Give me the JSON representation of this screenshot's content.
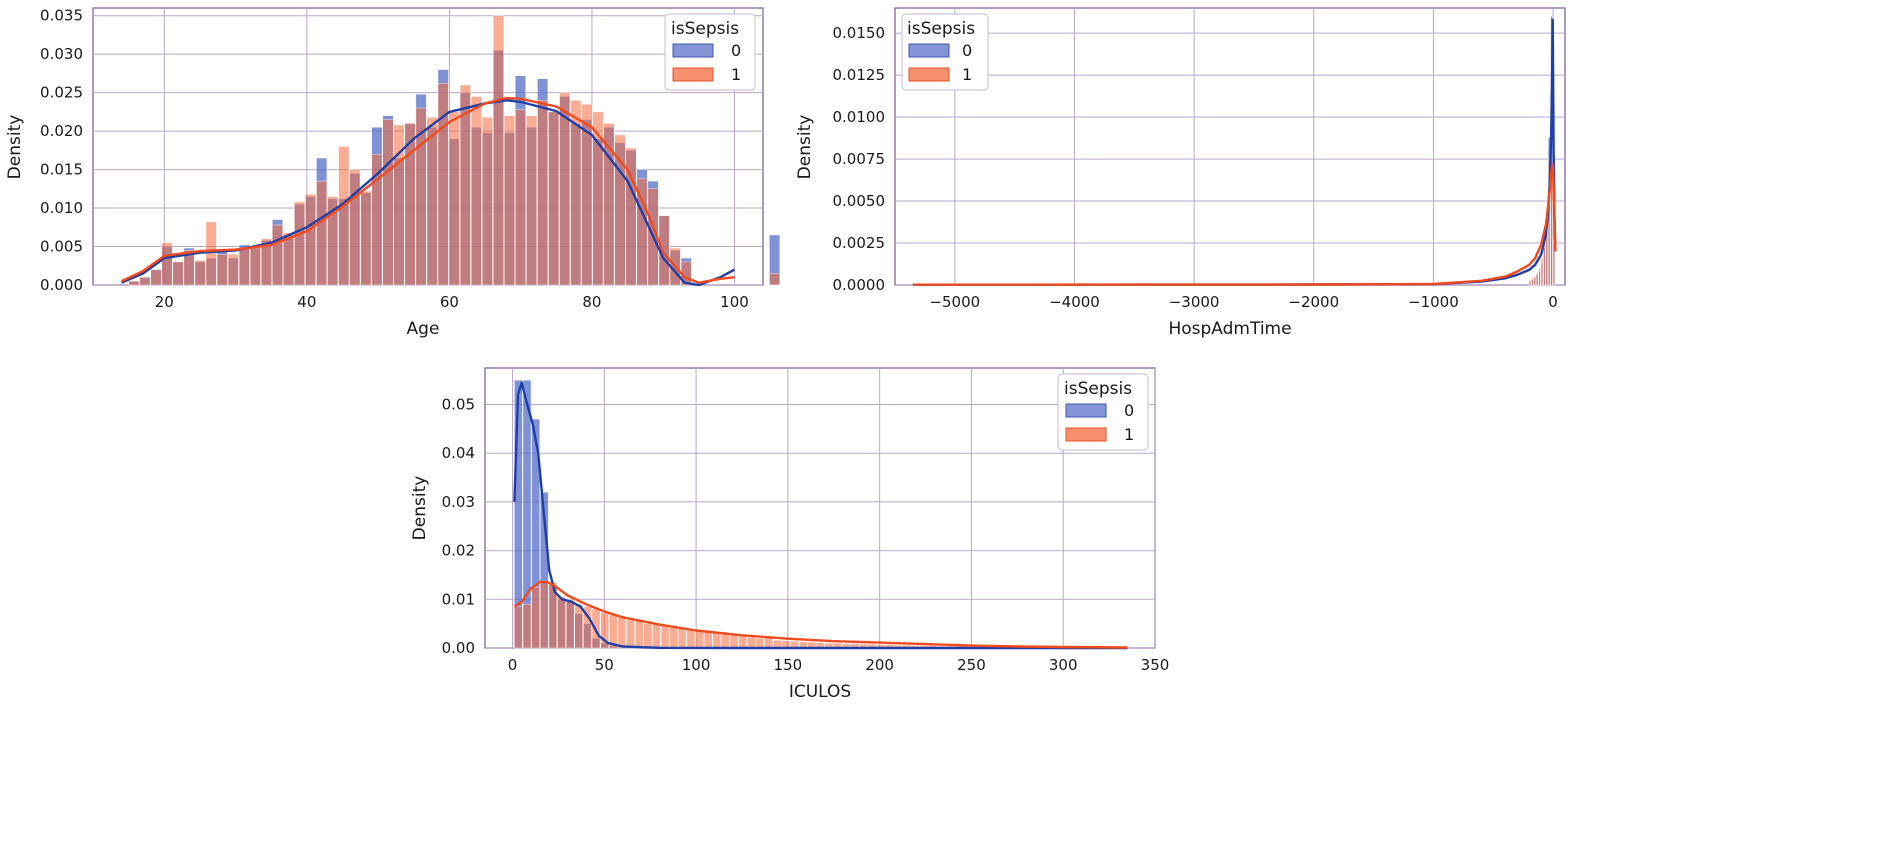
{
  "chart_data": [
    {
      "type": "histogram",
      "title": "",
      "xlabel": "Age",
      "ylabel": "Density",
      "xlim": [
        10,
        104
      ],
      "ylim": [
        0,
        0.036
      ],
      "xticks": [
        20,
        40,
        60,
        80,
        100
      ],
      "yticks": [
        0.0,
        0.005,
        0.01,
        0.015,
        0.02,
        0.025,
        0.03,
        0.035
      ],
      "ytick_labels": [
        "0.000",
        "0.005",
        "0.010",
        "0.015",
        "0.020",
        "0.025",
        "0.030",
        "0.035"
      ],
      "bin_start": 15,
      "bin_width": 1.55,
      "legend": {
        "title": "isSepsis",
        "entries": [
          "0",
          "1"
        ],
        "colors": [
          "#4f68c6",
          "#f26a3d"
        ],
        "placement": "top-right"
      },
      "series": [
        {
          "name": "0",
          "color": "#4f68c6",
          "values": [
            0.0005,
            0.001,
            0.002,
            0.005,
            0.003,
            0.0048,
            0.003,
            0.0035,
            0.0045,
            0.0035,
            0.0052,
            0.0048,
            0.0058,
            0.0085,
            0.0065,
            0.0105,
            0.0115,
            0.0165,
            0.0112,
            0.0112,
            0.0145,
            0.012,
            0.0205,
            0.022,
            0.0165,
            0.021,
            0.0248,
            0.0205,
            0.028,
            0.019,
            0.025,
            0.0205,
            0.0198,
            0.0305,
            0.0198,
            0.0272,
            0.0205,
            0.0268,
            0.0225,
            0.0245,
            0.021,
            0.0215,
            0.019,
            0.0205,
            0.0185,
            0.0175,
            0.015,
            0.0135,
            0.009,
            0.0045,
            0.0035,
            0.0,
            0.0,
            0.0,
            0.0,
            0.0,
            0.0,
            0.0,
            0.0065
          ]
        },
        {
          "name": "1",
          "color": "#f26a3d",
          "values": [
            0.0005,
            0.001,
            0.002,
            0.0055,
            0.003,
            0.0045,
            0.0032,
            0.0082,
            0.004,
            0.004,
            0.0048,
            0.005,
            0.006,
            0.0078,
            0.0068,
            0.0108,
            0.0118,
            0.0135,
            0.0115,
            0.018,
            0.015,
            0.0122,
            0.017,
            0.0215,
            0.0208,
            0.021,
            0.023,
            0.0218,
            0.0262,
            0.0225,
            0.026,
            0.0245,
            0.0218,
            0.035,
            0.022,
            0.0228,
            0.022,
            0.024,
            0.0225,
            0.025,
            0.024,
            0.0235,
            0.0225,
            0.021,
            0.0195,
            0.0178,
            0.0138,
            0.0125,
            0.009,
            0.0048,
            0.003,
            0.0,
            0.0,
            0.0,
            0.0,
            0.0,
            0.0,
            0.0,
            0.0015
          ]
        }
      ],
      "kde": [
        {
          "name": "0",
          "color": "#1f3fa8",
          "x": [
            14,
            17,
            20,
            25,
            30,
            35,
            40,
            45,
            50,
            55,
            60,
            65,
            68,
            70,
            75,
            80,
            85,
            88,
            90,
            93,
            95,
            98,
            100
          ],
          "y": [
            0.0003,
            0.0015,
            0.0035,
            0.0042,
            0.0045,
            0.0055,
            0.0075,
            0.0105,
            0.0145,
            0.019,
            0.0225,
            0.0236,
            0.024,
            0.0238,
            0.0226,
            0.0195,
            0.0135,
            0.0075,
            0.0035,
            0.0003,
            0.0,
            0.001,
            0.002
          ]
        },
        {
          "name": "1",
          "color": "#f04a1d",
          "x": [
            14,
            17,
            20,
            25,
            30,
            35,
            40,
            45,
            50,
            55,
            60,
            65,
            68,
            70,
            75,
            80,
            85,
            88,
            90,
            93,
            95,
            98,
            100
          ],
          "y": [
            0.0005,
            0.0018,
            0.0038,
            0.0044,
            0.0046,
            0.0052,
            0.007,
            0.0102,
            0.0138,
            0.0175,
            0.0212,
            0.0236,
            0.0243,
            0.0242,
            0.0232,
            0.0205,
            0.015,
            0.009,
            0.0042,
            0.001,
            0.0003,
            0.0008,
            0.001
          ]
        }
      ]
    },
    {
      "type": "histogram",
      "title": "",
      "xlabel": "HospAdmTime",
      "ylabel": "Density",
      "xlim": [
        -5500,
        100
      ],
      "ylim": [
        0,
        0.0165
      ],
      "xticks": [
        -5000,
        -4000,
        -3000,
        -2000,
        -1000,
        0
      ],
      "xtick_labels": [
        "−5000",
        "−4000",
        "−3000",
        "−2000",
        "−1000",
        "0"
      ],
      "yticks": [
        0.0,
        0.0025,
        0.005,
        0.0075,
        0.01,
        0.0125,
        0.015
      ],
      "ytick_labels": [
        "0.0000",
        "0.0025",
        "0.0050",
        "0.0075",
        "0.0100",
        "0.0125",
        "0.0150"
      ],
      "bin_start": -200,
      "bin_width": 20,
      "legend": {
        "title": "isSepsis",
        "entries": [
          "0",
          "1"
        ],
        "colors": [
          "#4f68c6",
          "#f26a3d"
        ],
        "placement": "top-left"
      },
      "series": [
        {
          "name": "0",
          "color": "#4f68c6",
          "values": [
            0.0002,
            0.0003,
            0.0004,
            0.0006,
            0.0008,
            0.0013,
            0.0022,
            0.0038,
            0.0088,
            0.016,
            0.0025
          ]
        },
        {
          "name": "1",
          "color": "#f26a3d",
          "values": [
            0.0003,
            0.0004,
            0.0005,
            0.0007,
            0.001,
            0.0016,
            0.0026,
            0.0042,
            0.0075,
            0.0068,
            0.0021
          ]
        }
      ],
      "kde": [
        {
          "name": "0",
          "color": "#1f3fa8",
          "x": [
            -5350,
            -2000,
            -1000,
            -600,
            -400,
            -300,
            -200,
            -150,
            -100,
            -60,
            -40,
            -25,
            -15,
            -8,
            -3,
            0,
            5,
            12,
            20
          ],
          "y": [
            2e-05,
            3e-05,
            5e-05,
            0.0002,
            0.0004,
            0.0006,
            0.0009,
            0.0012,
            0.0018,
            0.003,
            0.0045,
            0.0065,
            0.009,
            0.0125,
            0.0158,
            0.0135,
            0.008,
            0.004,
            0.002
          ]
        },
        {
          "name": "1",
          "color": "#f04a1d",
          "x": [
            -5350,
            -2000,
            -1000,
            -600,
            -400,
            -300,
            -200,
            -150,
            -100,
            -60,
            -40,
            -25,
            -15,
            -8,
            -3,
            0,
            5,
            12,
            20
          ],
          "y": [
            2e-05,
            3e-05,
            6e-05,
            0.00025,
            0.0005,
            0.0008,
            0.0012,
            0.0016,
            0.0024,
            0.0036,
            0.0048,
            0.0058,
            0.0066,
            0.0071,
            0.0072,
            0.007,
            0.0058,
            0.0038,
            0.002
          ]
        }
      ]
    },
    {
      "type": "histogram",
      "title": "",
      "xlabel": "ICULOS",
      "ylabel": "Density",
      "xlim": [
        -15,
        350
      ],
      "ylim": [
        0,
        0.0575
      ],
      "xticks": [
        0,
        50,
        100,
        150,
        200,
        250,
        300,
        350
      ],
      "yticks": [
        0.0,
        0.01,
        0.02,
        0.03,
        0.04,
        0.05
      ],
      "ytick_labels": [
        "0.00",
        "0.01",
        "0.02",
        "0.03",
        "0.04",
        "0.05"
      ],
      "bin_start": 1,
      "bin_width": 4.7,
      "legend": {
        "title": "isSepsis",
        "entries": [
          "0",
          "1"
        ],
        "colors": [
          "#4f68c6",
          "#f26a3d"
        ],
        "placement": "top-right"
      },
      "series": [
        {
          "name": "0",
          "color": "#4f68c6",
          "values": [
            0.055,
            0.055,
            0.047,
            0.032,
            0.013,
            0.01,
            0.0095,
            0.007,
            0.005,
            0.002,
            0.001,
            0.0005,
            0.0002,
            0.0001,
            0.0001,
            0.0001,
            0.0001,
            0.0001,
            0.0,
            0.0,
            0.0,
            0.0,
            0.0,
            0.0,
            0.0,
            0.0,
            0.0,
            0.0,
            0.0,
            0.0,
            0.0,
            0.0,
            0.0,
            0.0,
            0.0,
            0.0,
            0.0,
            0.0,
            0.0,
            0.0,
            0.0,
            0.0,
            0.0,
            0.0,
            0.0,
            0.0,
            0.0,
            0.0,
            0.0,
            0.0,
            0.0,
            0.0,
            0.0,
            0.0,
            0.0,
            0.0,
            0.0,
            0.0,
            0.0,
            0.0,
            0.0,
            0.0,
            0.0,
            0.0,
            0.0,
            0.0,
            0.0,
            0.0,
            0.0,
            0.0,
            0.0
          ]
        },
        {
          "name": "1",
          "color": "#f26a3d",
          "values": [
            0.0085,
            0.009,
            0.0125,
            0.0135,
            0.0135,
            0.0105,
            0.01,
            0.009,
            0.0085,
            0.008,
            0.0072,
            0.0068,
            0.0062,
            0.0058,
            0.0055,
            0.005,
            0.0048,
            0.0045,
            0.0042,
            0.004,
            0.0038,
            0.0035,
            0.0032,
            0.003,
            0.0028,
            0.0026,
            0.0024,
            0.0022,
            0.002,
            0.0023,
            0.0016,
            0.0015,
            0.0014,
            0.0013,
            0.0012,
            0.0011,
            0.001,
            0.001,
            0.0009,
            0.0009,
            0.0008,
            0.0008,
            0.0007,
            0.0007,
            0.0006,
            0.0006,
            0.0005,
            0.0005,
            0.0005,
            0.0004,
            0.0004,
            0.0004,
            0.0003,
            0.0003,
            0.0003,
            0.0003,
            0.0002,
            0.0002,
            0.0002,
            0.0002,
            0.0002,
            0.0001,
            0.0001,
            0.0001,
            0.0001,
            0.0001,
            0.0001,
            0.0001,
            0.0001,
            0.0001,
            0.0001
          ]
        }
      ],
      "kde": [
        {
          "name": "0",
          "color": "#1f3fa8",
          "x": [
            1,
            3,
            5,
            8,
            11,
            14,
            17,
            20,
            23,
            27,
            32,
            37,
            42,
            47,
            52,
            60,
            80,
            120,
            200,
            335
          ],
          "y": [
            0.03,
            0.052,
            0.0545,
            0.05,
            0.046,
            0.04,
            0.028,
            0.016,
            0.0115,
            0.01,
            0.0095,
            0.0085,
            0.006,
            0.0025,
            0.001,
            0.0003,
            5e-05,
            0.0,
            0.0,
            0.0
          ]
        },
        {
          "name": "1",
          "color": "#f04a1d",
          "x": [
            1,
            5,
            10,
            15,
            20,
            25,
            30,
            40,
            50,
            60,
            80,
            100,
            125,
            150,
            175,
            200,
            225,
            250,
            275,
            300,
            335
          ],
          "y": [
            0.0085,
            0.0095,
            0.0122,
            0.0136,
            0.0134,
            0.0122,
            0.0108,
            0.009,
            0.0075,
            0.0063,
            0.0048,
            0.0036,
            0.0026,
            0.0019,
            0.0014,
            0.0011,
            0.0008,
            0.0005,
            0.0003,
            0.0002,
            0.0001
          ]
        }
      ]
    }
  ]
}
